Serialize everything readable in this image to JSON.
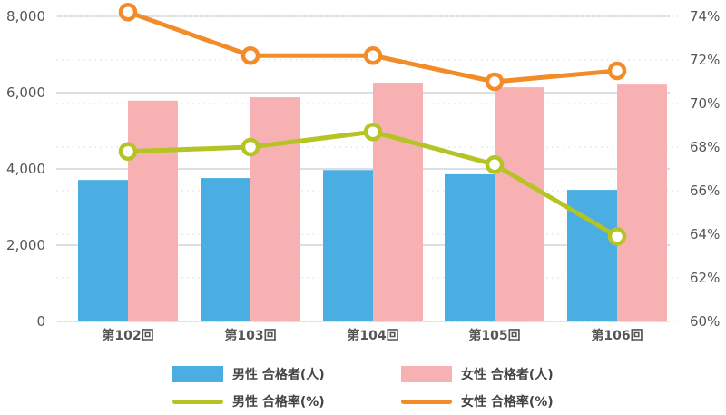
{
  "chart_data": {
    "type": "bar+line",
    "title": "",
    "categories": [
      "第102回",
      "第103回",
      "第104回",
      "第105回",
      "第106回"
    ],
    "series": [
      {
        "name": "男性 合格者(人)",
        "type": "bar",
        "axis": "left",
        "color": "#4aaee3",
        "values": [
          3710,
          3760,
          3970,
          3860,
          3450
        ]
      },
      {
        "name": "女性 合格者(人)",
        "type": "bar",
        "axis": "left",
        "color": "#f7b1b3",
        "values": [
          5790,
          5880,
          6260,
          6140,
          6210
        ]
      },
      {
        "name": "男性 合格率(%)",
        "type": "line",
        "axis": "right",
        "color": "#b5c325",
        "values": [
          67.8,
          68.0,
          68.7,
          67.2,
          63.9
        ]
      },
      {
        "name": "女性 合格率(%)",
        "type": "line",
        "axis": "right",
        "color": "#f28c28",
        "values": [
          74.2,
          72.2,
          72.2,
          71.0,
          71.5
        ]
      }
    ],
    "left_axis": {
      "label": "",
      "ylim": [
        0,
        8000
      ],
      "ticks": [
        "0",
        "2,000",
        "4,000",
        "6,000",
        "8,000"
      ]
    },
    "right_axis": {
      "label": "",
      "ylim": [
        60,
        74
      ],
      "ticks": [
        "60%",
        "62%",
        "64%",
        "66%",
        "68%",
        "70%",
        "72%",
        "74%"
      ]
    },
    "grid": true,
    "legend_position": "bottom"
  },
  "legend": [
    {
      "label": "男性 合格者(人)",
      "kind": "bar",
      "color": "#4aaee3"
    },
    {
      "label": "女性 合格者(人)",
      "kind": "bar",
      "color": "#f7b1b3"
    },
    {
      "label": "男性 合格率(%)",
      "kind": "line",
      "color": "#b5c325"
    },
    {
      "label": "女性 合格率(%)",
      "kind": "line",
      "color": "#f28c28"
    }
  ]
}
